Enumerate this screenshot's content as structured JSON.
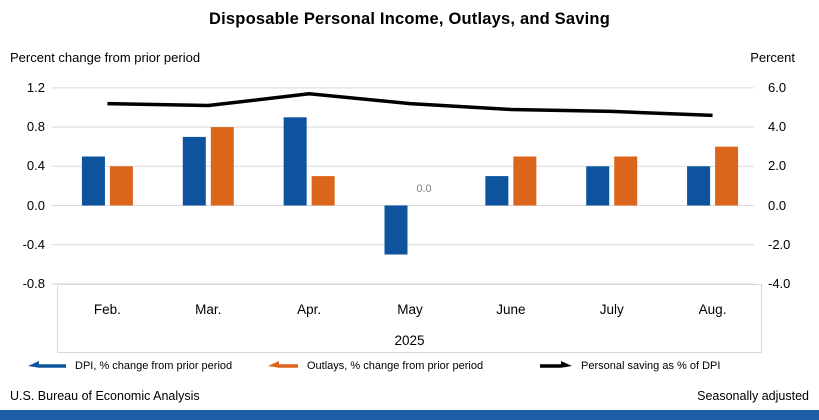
{
  "title": "Disposable Personal Income, Outlays, and Saving",
  "axis_captions": {
    "left": "Percent change from prior period",
    "right": "Percent"
  },
  "chart_data": {
    "type": "bar",
    "categories": [
      "Feb.",
      "Mar.",
      "Apr.",
      "May",
      "June",
      "July",
      "Aug."
    ],
    "x_axis_year": "2025",
    "series": [
      {
        "name": "DPI, % change from prior period",
        "type": "bar",
        "axis": "left",
        "values": [
          0.5,
          0.7,
          0.9,
          -0.5,
          0.3,
          0.4,
          0.4
        ]
      },
      {
        "name": "Outlays, % change from prior period",
        "type": "bar",
        "axis": "left",
        "values": [
          0.4,
          0.8,
          0.3,
          0.0,
          0.5,
          0.5,
          0.6
        ]
      },
      {
        "name": "Personal saving as % of DPI",
        "type": "line",
        "axis": "right",
        "values": [
          5.2,
          5.1,
          5.7,
          5.2,
          4.9,
          4.8,
          4.6
        ]
      }
    ],
    "left_axis": {
      "ticks": [
        "1.2",
        "0.8",
        "0.4",
        "0.0",
        "-0.4",
        "-0.8"
      ],
      "range": [
        -0.8,
        1.2
      ]
    },
    "right_axis": {
      "ticks": [
        "6.0",
        "4.0",
        "2.0",
        "0.0",
        "-2.0",
        "-4.0"
      ],
      "range": [
        -4.0,
        6.0
      ]
    },
    "data_labels": [
      {
        "series_index": 1,
        "category": "May",
        "text": "0.0"
      }
    ],
    "grid": true,
    "legend_position": "bottom"
  },
  "legend": {
    "items": [
      {
        "label": "DPI, % change from prior period",
        "marker": "left-arrow",
        "color_key": "bar_blue"
      },
      {
        "label": "Outlays, % change from prior period",
        "marker": "left-arrow",
        "color_key": "bar_orange"
      },
      {
        "label": "Personal saving as % of DPI",
        "marker": "right-arrow",
        "color_key": "line_black"
      }
    ]
  },
  "footer": {
    "source": "U.S. Bureau of Economic Analysis",
    "note": "Seasonally adjusted"
  },
  "colors": {
    "bar_blue": "#0d539e",
    "bar_orange": "#dc651c",
    "line_black": "#000000",
    "gridline": "#d9d9d9",
    "label_gray": "#7f7f7f",
    "footer_stripe": "#1e5ca8"
  }
}
